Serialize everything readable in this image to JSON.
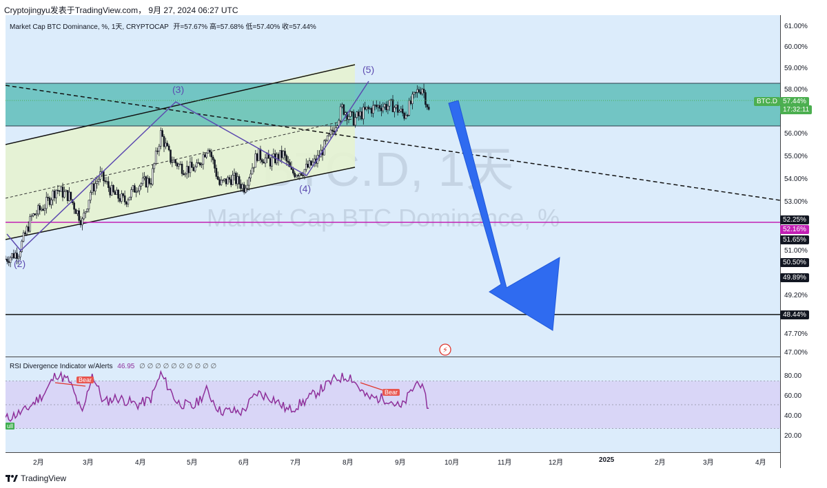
{
  "header": {
    "text": "Cryptojingyu发表于TradingView.com， 9月 27, 2024 06:27 UTC"
  },
  "legend": {
    "title": "Market Cap BTC Dominance, %, 1天, CRYPTOCAP",
    "ohlc": "开=57.67%  高=57.68%  低=57.40%  收=57.44%"
  },
  "watermark": {
    "symbol": "BTC.D, 1天",
    "name": "Market Cap BTC Dominance, %"
  },
  "rsi_legend": {
    "title": "RSI Divergence Indicator w/Alerts",
    "value": "46.95",
    "extras": "∅ ∅ ∅ ∅ ∅ ∅ ∅ ∅ ∅ ∅"
  },
  "price_ticks": [
    "61.00%",
    "60.00%",
    "59.00%",
    "58.00%",
    "56.00%",
    "55.00%",
    "54.00%",
    "53.00%",
    "51.00%",
    "49.20%",
    "47.70%",
    "47.00%"
  ],
  "price_labels": [
    {
      "text": "BTC.D",
      "color": "#4caf50"
    },
    {
      "text": "57.44%",
      "color": "#4caf50"
    },
    {
      "text": "17:32:11",
      "color": "#4caf50"
    },
    {
      "text": "52.25%",
      "color": "#131722"
    },
    {
      "text": "52.16%",
      "color": "#c21fb4"
    },
    {
      "text": "51.65%",
      "color": "#131722"
    },
    {
      "text": "50.50%",
      "color": "#131722"
    },
    {
      "text": "49.89%",
      "color": "#131722"
    },
    {
      "text": "48.44%",
      "color": "#131722"
    }
  ],
  "rsi_ticks": [
    "80.00",
    "60.00",
    "40.00",
    "20.00"
  ],
  "time_ticks": [
    "2月",
    "3月",
    "4月",
    "5月",
    "6月",
    "7月",
    "8月",
    "9月",
    "10月",
    "11月",
    "12月",
    "2025",
    "2月",
    "3月",
    "4月"
  ],
  "wave_labels": [
    "(2)",
    "(3)",
    "(4)",
    "(5)"
  ],
  "bear_label": "Bear",
  "bull_label": "ull",
  "footer": {
    "brand": "TradingView"
  },
  "colors": {
    "zone": "#4fb8b2",
    "channel": "#e6f3d0",
    "arrow": "#2f6bf0",
    "rsi": "#8e2f9a",
    "rsi_band": "#d8d4f6",
    "pink_line": "#c21fb4"
  },
  "chart_data": {
    "type": "candlestick",
    "title": "Market Cap BTC Dominance, %, 1天, CRYPTOCAP",
    "ylim": [
      46.8,
      61.5
    ],
    "x_range": [
      "2024-01-12",
      "2025-04-30"
    ],
    "last_close": 57.44,
    "close_series": [
      [
        "2024-01-12",
        51.0
      ],
      [
        "2024-01-20",
        51.3
      ],
      [
        "2024-01-28",
        52.8
      ],
      [
        "2024-02-05",
        53.3
      ],
      [
        "2024-02-12",
        54.0
      ],
      [
        "2024-02-20",
        53.7
      ],
      [
        "2024-02-28",
        52.6
      ],
      [
        "2024-03-04",
        53.9
      ],
      [
        "2024-03-10",
        54.6
      ],
      [
        "2024-03-18",
        53.8
      ],
      [
        "2024-03-25",
        53.5
      ],
      [
        "2024-04-02",
        54.2
      ],
      [
        "2024-04-10",
        54.4
      ],
      [
        "2024-04-16",
        56.4
      ],
      [
        "2024-04-22",
        55.3
      ],
      [
        "2024-04-30",
        54.9
      ],
      [
        "2024-05-08",
        54.9
      ],
      [
        "2024-05-15",
        55.9
      ],
      [
        "2024-05-22",
        54.2
      ],
      [
        "2024-05-30",
        54.5
      ],
      [
        "2024-06-06",
        54.1
      ],
      [
        "2024-06-14",
        55.5
      ],
      [
        "2024-06-22",
        55.2
      ],
      [
        "2024-06-30",
        55.5
      ],
      [
        "2024-07-05",
        54.7
      ],
      [
        "2024-07-12",
        54.8
      ],
      [
        "2024-07-20",
        55.2
      ],
      [
        "2024-07-28",
        56.2
      ],
      [
        "2024-08-05",
        57.5
      ],
      [
        "2024-08-12",
        57.0
      ],
      [
        "2024-08-20",
        57.4
      ],
      [
        "2024-08-28",
        57.6
      ],
      [
        "2024-09-05",
        57.6
      ],
      [
        "2024-09-12",
        57.2
      ],
      [
        "2024-09-20",
        58.2
      ],
      [
        "2024-09-23",
        58.4
      ],
      [
        "2024-09-27",
        57.44
      ]
    ],
    "resistance_zone": [
      56.4,
      58.2
    ],
    "horizontal_lines": [
      52.25,
      48.44
    ],
    "rsi": {
      "name": "RSI Divergence Indicator w/Alerts",
      "value": 46.95,
      "band": [
        30,
        70
      ],
      "ylim": [
        10,
        90
      ],
      "series": [
        [
          "2024-01-12",
          38
        ],
        [
          "2024-01-24",
          45
        ],
        [
          "2024-02-05",
          60
        ],
        [
          "2024-02-12",
          76
        ],
        [
          "2024-02-20",
          70
        ],
        [
          "2024-02-28",
          42
        ],
        [
          "2024-03-05",
          76
        ],
        [
          "2024-03-12",
          52
        ],
        [
          "2024-03-20",
          56
        ],
        [
          "2024-04-02",
          50
        ],
        [
          "2024-04-10",
          55
        ],
        [
          "2024-04-16",
          76
        ],
        [
          "2024-04-26",
          52
        ],
        [
          "2024-05-06",
          48
        ],
        [
          "2024-05-14",
          62
        ],
        [
          "2024-05-22",
          45
        ],
        [
          "2024-06-05",
          44
        ],
        [
          "2024-06-14",
          60
        ],
        [
          "2024-06-24",
          55
        ],
        [
          "2024-07-03",
          45
        ],
        [
          "2024-07-12",
          52
        ],
        [
          "2024-07-22",
          62
        ],
        [
          "2024-08-01",
          72
        ],
        [
          "2024-08-10",
          74
        ],
        [
          "2024-08-20",
          56
        ],
        [
          "2024-09-02",
          55
        ],
        [
          "2024-09-10",
          47
        ],
        [
          "2024-09-18",
          65
        ],
        [
          "2024-09-21",
          71
        ],
        [
          "2024-09-27",
          47
        ]
      ]
    }
  }
}
